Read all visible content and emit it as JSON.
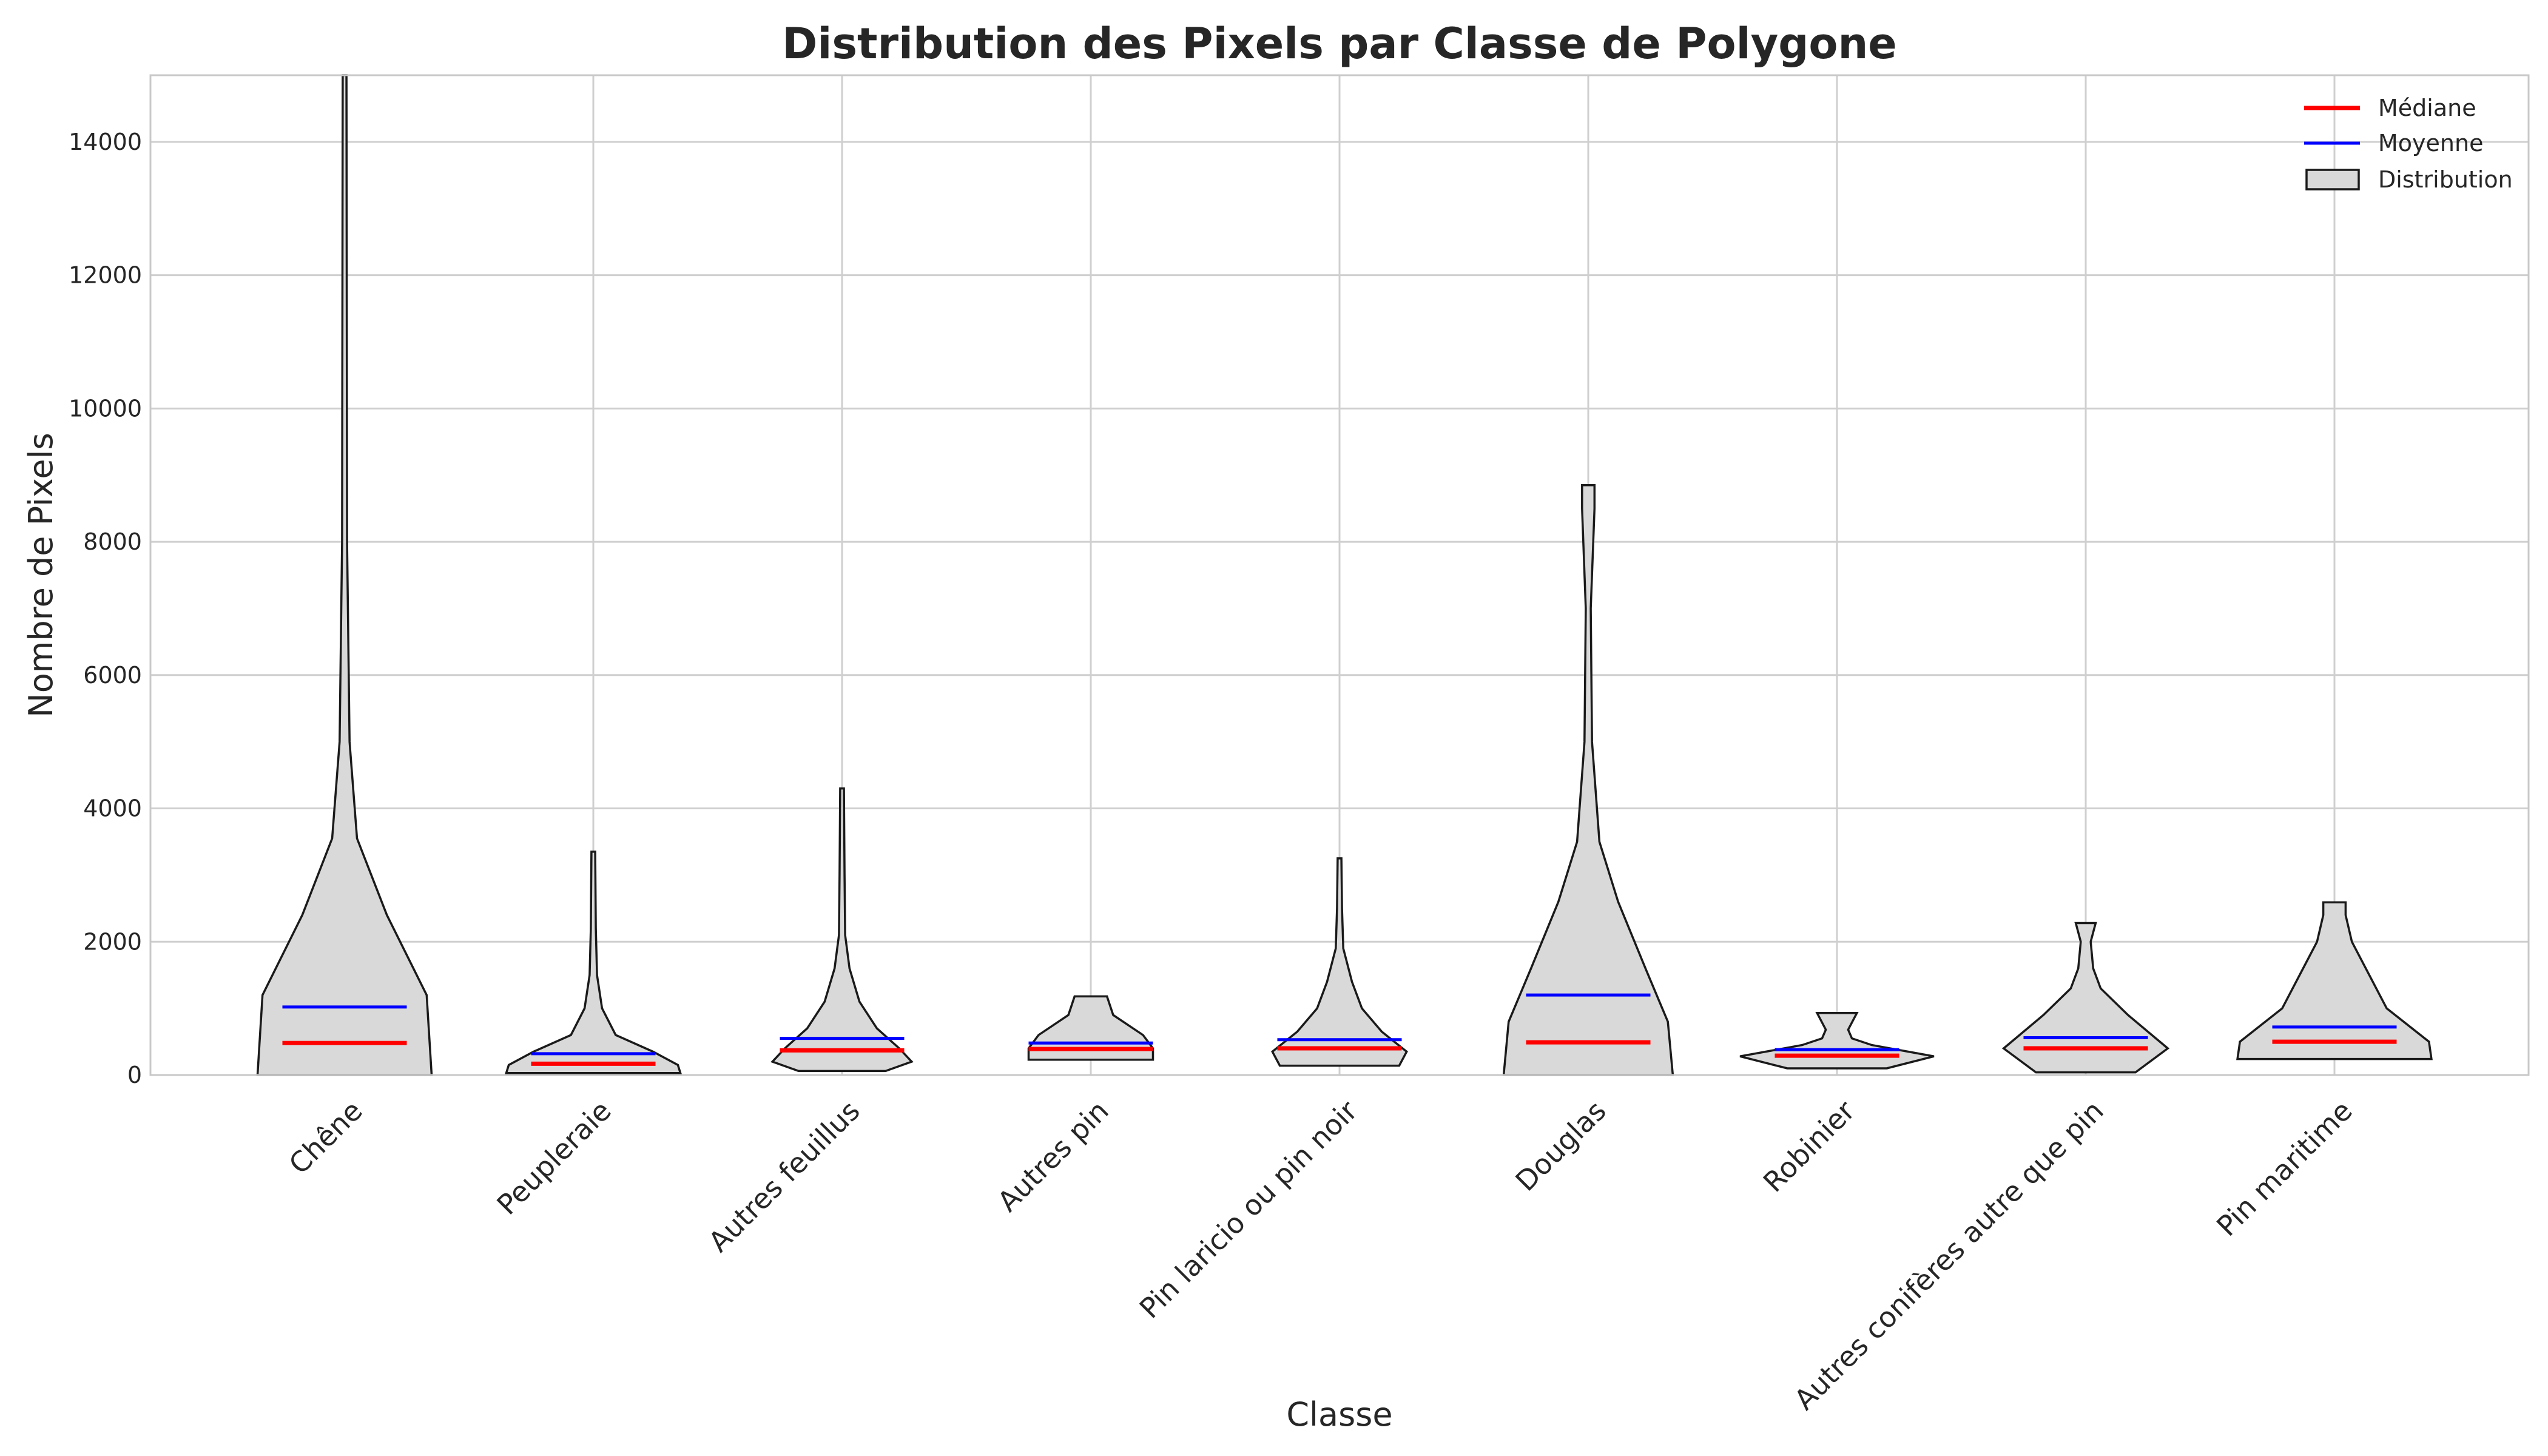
{
  "chart_data": {
    "type": "violin",
    "title": "Distribution des Pixels par Classe de Polygone",
    "xlabel": "Classe",
    "ylabel": "Nombre de Pixels",
    "ylim": [
      0,
      15000
    ],
    "yticks": [
      0,
      2000,
      4000,
      6000,
      8000,
      10000,
      12000,
      14000
    ],
    "grid": true,
    "legend_position": "top-right",
    "legend": {
      "median": "Médiane",
      "mean": "Moyenne",
      "distribution": "Distribution"
    },
    "colors": {
      "median": "#ff0000",
      "mean": "#0000ff",
      "violin_fill": "#d9d9d9",
      "violin_edge": "#1a1a1a",
      "grid": "#cfcfcf"
    },
    "categories": [
      "Chêne",
      "Peupleraie",
      "Autres feuillus",
      "Autres pin",
      "Pin laricio ou pin noir",
      "Douglas",
      "Robinier",
      "Autres conifères autre que pin",
      "Pin maritime"
    ],
    "series": [
      {
        "median": 480,
        "mean": 1020,
        "min": 0,
        "max": 15000,
        "profile": [
          [
            0,
            0.7
          ],
          [
            1200,
            0.66
          ],
          [
            2400,
            0.34
          ],
          [
            3550,
            0.1
          ],
          [
            5000,
            0.04
          ],
          [
            8000,
            0.02
          ],
          [
            15000,
            0.015
          ]
        ]
      },
      {
        "median": 170,
        "mean": 320,
        "min": 30,
        "max": 3350,
        "profile": [
          [
            30,
            0.7
          ],
          [
            150,
            0.68
          ],
          [
            350,
            0.48
          ],
          [
            600,
            0.18
          ],
          [
            1000,
            0.07
          ],
          [
            1500,
            0.03
          ],
          [
            2200,
            0.02
          ],
          [
            3350,
            0.015
          ]
        ]
      },
      {
        "median": 370,
        "mean": 550,
        "min": 60,
        "max": 4300,
        "profile": [
          [
            60,
            0.35
          ],
          [
            200,
            0.56
          ],
          [
            400,
            0.46
          ],
          [
            700,
            0.28
          ],
          [
            1100,
            0.14
          ],
          [
            1600,
            0.06
          ],
          [
            2100,
            0.025
          ],
          [
            3000,
            0.02
          ],
          [
            4300,
            0.015
          ]
        ]
      },
      {
        "median": 390,
        "mean": 480,
        "min": 230,
        "max": 1180,
        "profile": [
          [
            230,
            0.5
          ],
          [
            400,
            0.5
          ],
          [
            600,
            0.42
          ],
          [
            900,
            0.18
          ],
          [
            1180,
            0.13
          ]
        ]
      },
      {
        "median": 400,
        "mean": 530,
        "min": 140,
        "max": 3250,
        "profile": [
          [
            140,
            0.48
          ],
          [
            350,
            0.54
          ],
          [
            650,
            0.34
          ],
          [
            1000,
            0.18
          ],
          [
            1400,
            0.1
          ],
          [
            1900,
            0.03
          ],
          [
            2500,
            0.02
          ],
          [
            3250,
            0.015
          ]
        ]
      },
      {
        "median": 490,
        "mean": 1200,
        "min": 0,
        "max": 8850,
        "profile": [
          [
            0,
            0.68
          ],
          [
            800,
            0.64
          ],
          [
            1600,
            0.46
          ],
          [
            2600,
            0.24
          ],
          [
            3500,
            0.09
          ],
          [
            5000,
            0.03
          ],
          [
            7000,
            0.02
          ],
          [
            8500,
            0.05
          ],
          [
            8850,
            0.05
          ]
        ]
      },
      {
        "median": 290,
        "mean": 380,
        "min": 100,
        "max": 930,
        "profile": [
          [
            100,
            0.4
          ],
          [
            280,
            0.78
          ],
          [
            450,
            0.28
          ],
          [
            550,
            0.12
          ],
          [
            680,
            0.09
          ],
          [
            930,
            0.16
          ]
        ]
      },
      {
        "median": 400,
        "mean": 560,
        "min": 40,
        "max": 2280,
        "profile": [
          [
            40,
            0.4
          ],
          [
            400,
            0.66
          ],
          [
            900,
            0.34
          ],
          [
            1300,
            0.12
          ],
          [
            1600,
            0.06
          ],
          [
            2000,
            0.04
          ],
          [
            2280,
            0.08
          ]
        ]
      },
      {
        "median": 500,
        "mean": 720,
        "min": 240,
        "max": 2590,
        "profile": [
          [
            240,
            0.78
          ],
          [
            500,
            0.76
          ],
          [
            1000,
            0.42
          ],
          [
            1500,
            0.28
          ],
          [
            2000,
            0.14
          ],
          [
            2400,
            0.09
          ],
          [
            2590,
            0.09
          ]
        ]
      }
    ]
  }
}
